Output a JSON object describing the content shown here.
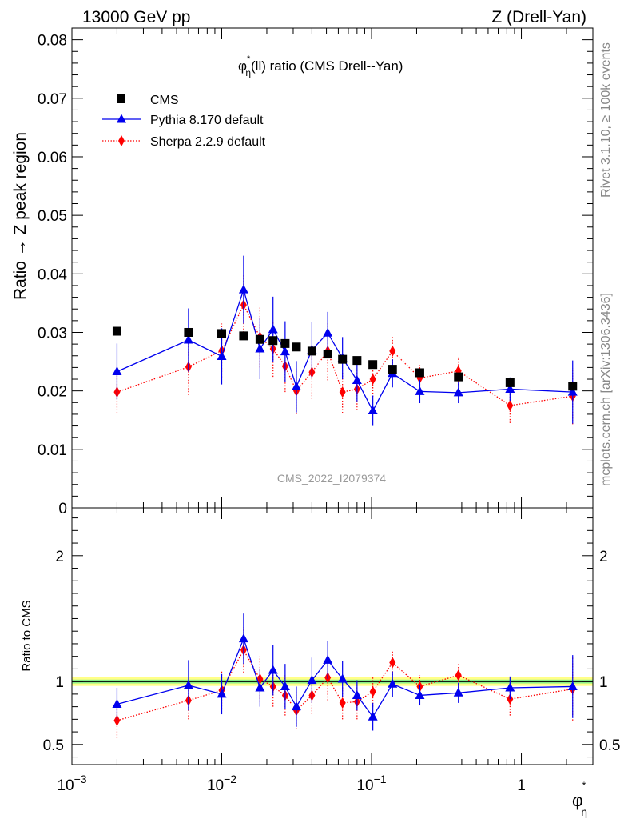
{
  "header": {
    "left": "13000 GeV pp",
    "right": "Z (Drell-Yan)"
  },
  "side_labels": {
    "rivet": "Rivet 3.1.10, ≥ 100k events",
    "mcplots": "mcplots.cern.ch [arXiv:1306.3436]"
  },
  "colors": {
    "cms": "#000000",
    "pythia": "#0000ee",
    "sherpa": "#ff0000",
    "band_outer": "#ffff88",
    "band_inner": "#88ee88"
  },
  "chart_data": {
    "type": "scatter",
    "title": "φη*(ll) ratio (CMS Drell--Yan)",
    "title_parts": {
      "phi": "φ",
      "star": "*",
      "eta": "η",
      "rest": "(ll) ratio (CMS Drell--Yan)"
    },
    "watermark": "CMS_2022_I2079374",
    "xlabel": {
      "phi": "φ",
      "star": "*",
      "eta": "η"
    },
    "xscale": "log",
    "xlim": [
      0.001,
      3.0
    ],
    "x_ticks": [
      {
        "value": 0.001,
        "base": "10",
        "exp": "−3"
      },
      {
        "value": 0.01,
        "base": "10",
        "exp": "−2"
      },
      {
        "value": 0.1,
        "base": "10",
        "exp": "−1"
      },
      {
        "value": 1,
        "label": "1"
      }
    ],
    "legend_position": "top-left",
    "main": {
      "ylabel": "Ratio → Z peak region",
      "ylim": [
        0,
        0.082
      ],
      "y_ticks": [
        {
          "value": 0,
          "label": "0"
        },
        {
          "value": 0.01,
          "label": "0.01"
        },
        {
          "value": 0.02,
          "label": "0.02"
        },
        {
          "value": 0.03,
          "label": "0.03"
        },
        {
          "value": 0.04,
          "label": "0.04"
        },
        {
          "value": 0.05,
          "label": "0.05"
        },
        {
          "value": 0.06,
          "label": "0.06"
        },
        {
          "value": 0.07,
          "label": "0.07"
        },
        {
          "value": 0.08,
          "label": "0.08"
        }
      ],
      "series": [
        {
          "name": "CMS",
          "marker": "square",
          "x": [
            0.002,
            0.006,
            0.01,
            0.014,
            0.018,
            0.022,
            0.0265,
            0.0315,
            0.04,
            0.051,
            0.064,
            0.08,
            0.102,
            0.138,
            0.21,
            0.38,
            0.84,
            2.2
          ],
          "y": [
            0.0302,
            0.03,
            0.0298,
            0.0294,
            0.0288,
            0.0286,
            0.0281,
            0.0275,
            0.0268,
            0.0263,
            0.0254,
            0.0252,
            0.0245,
            0.0237,
            0.0231,
            0.0224,
            0.0214,
            0.0208
          ],
          "err": [
            0.0003,
            0.0003,
            0.0003,
            0.0003,
            0.0003,
            0.0003,
            0.0003,
            0.0003,
            0.0003,
            0.0003,
            0.0003,
            0.0003,
            0.0003,
            0.0003,
            0.0003,
            0.0003,
            0.0003,
            0.0003
          ]
        },
        {
          "name": "Pythia 8.170 default",
          "marker": "triangle",
          "line": "solid",
          "x": [
            0.002,
            0.006,
            0.01,
            0.014,
            0.018,
            0.022,
            0.0265,
            0.0315,
            0.04,
            0.051,
            0.064,
            0.08,
            0.102,
            0.138,
            0.21,
            0.38,
            0.84,
            2.2
          ],
          "y": [
            0.0233,
            0.0287,
            0.0259,
            0.0373,
            0.0272,
            0.0305,
            0.0267,
            0.0207,
            0.027,
            0.0299,
            0.0256,
            0.0218,
            0.0166,
            0.023,
            0.0199,
            0.0197,
            0.0203,
            0.0198
          ],
          "err": [
            0.0048,
            0.0054,
            0.0048,
            0.0058,
            0.0052,
            0.0056,
            0.0052,
            0.0044,
            0.0048,
            0.0036,
            0.0036,
            0.0036,
            0.0026,
            0.0024,
            0.002,
            0.0018,
            0.002,
            0.0054
          ]
        },
        {
          "name": "Sherpa 2.2.9 default",
          "marker": "diamond",
          "line": "dotted",
          "x": [
            0.002,
            0.006,
            0.01,
            0.014,
            0.018,
            0.022,
            0.0265,
            0.0315,
            0.04,
            0.051,
            0.064,
            0.08,
            0.102,
            0.138,
            0.21,
            0.38,
            0.84,
            2.2
          ],
          "y": [
            0.0198,
            0.0241,
            0.0269,
            0.0347,
            0.0292,
            0.0272,
            0.0242,
            0.02,
            0.0232,
            0.0268,
            0.0198,
            0.0203,
            0.022,
            0.0268,
            0.0222,
            0.0234,
            0.0175,
            0.0191
          ],
          "err": [
            0.0036,
            0.0048,
            0.0046,
            0.0052,
            0.0052,
            0.0048,
            0.0044,
            0.004,
            0.0046,
            0.005,
            0.0036,
            0.0036,
            0.003,
            0.0026,
            0.0022,
            0.0024,
            0.003,
            0.0048
          ]
        }
      ]
    },
    "ratio": {
      "ylabel": "Ratio to CMS",
      "ylim": [
        0.34,
        2.38
      ],
      "y_ticks": [
        {
          "value": 0.5,
          "label": "0.5"
        },
        {
          "value": 1,
          "label": "1"
        },
        {
          "value": 2,
          "label": "2"
        }
      ],
      "band": {
        "inner": [
          0.985,
          1.015
        ],
        "outer": [
          0.965,
          1.035
        ]
      },
      "series": [
        {
          "name": "Pythia 8.170 default",
          "marker": "triangle",
          "line": "solid",
          "x": [
            0.002,
            0.006,
            0.01,
            0.014,
            0.018,
            0.022,
            0.0265,
            0.0315,
            0.04,
            0.051,
            0.064,
            0.08,
            0.102,
            0.138,
            0.21,
            0.38,
            0.84,
            2.2
          ],
          "y": [
            0.82,
            0.97,
            0.9,
            1.34,
            0.95,
            1.09,
            0.96,
            0.8,
            1.01,
            1.17,
            1.02,
            0.89,
            0.72,
            0.98,
            0.89,
            0.91,
            0.95,
            0.96
          ],
          "err": [
            0.13,
            0.2,
            0.16,
            0.2,
            0.15,
            0.2,
            0.18,
            0.16,
            0.18,
            0.15,
            0.14,
            0.12,
            0.11,
            0.1,
            0.08,
            0.08,
            0.09,
            0.25
          ]
        },
        {
          "name": "Sherpa 2.2.9 default",
          "marker": "diamond",
          "line": "dotted",
          "x": [
            0.002,
            0.006,
            0.01,
            0.014,
            0.018,
            0.022,
            0.0265,
            0.0315,
            0.04,
            0.051,
            0.064,
            0.08,
            0.102,
            0.138,
            0.21,
            0.38,
            0.84,
            2.2
          ],
          "y": [
            0.69,
            0.85,
            0.93,
            1.25,
            1.02,
            0.96,
            0.89,
            0.77,
            0.89,
            1.03,
            0.83,
            0.84,
            0.92,
            1.15,
            0.96,
            1.05,
            0.86,
            0.94
          ],
          "err": [
            0.14,
            0.15,
            0.15,
            0.18,
            0.18,
            0.16,
            0.16,
            0.15,
            0.15,
            0.18,
            0.13,
            0.14,
            0.12,
            0.1,
            0.09,
            0.1,
            0.13,
            0.25
          ]
        }
      ]
    }
  }
}
